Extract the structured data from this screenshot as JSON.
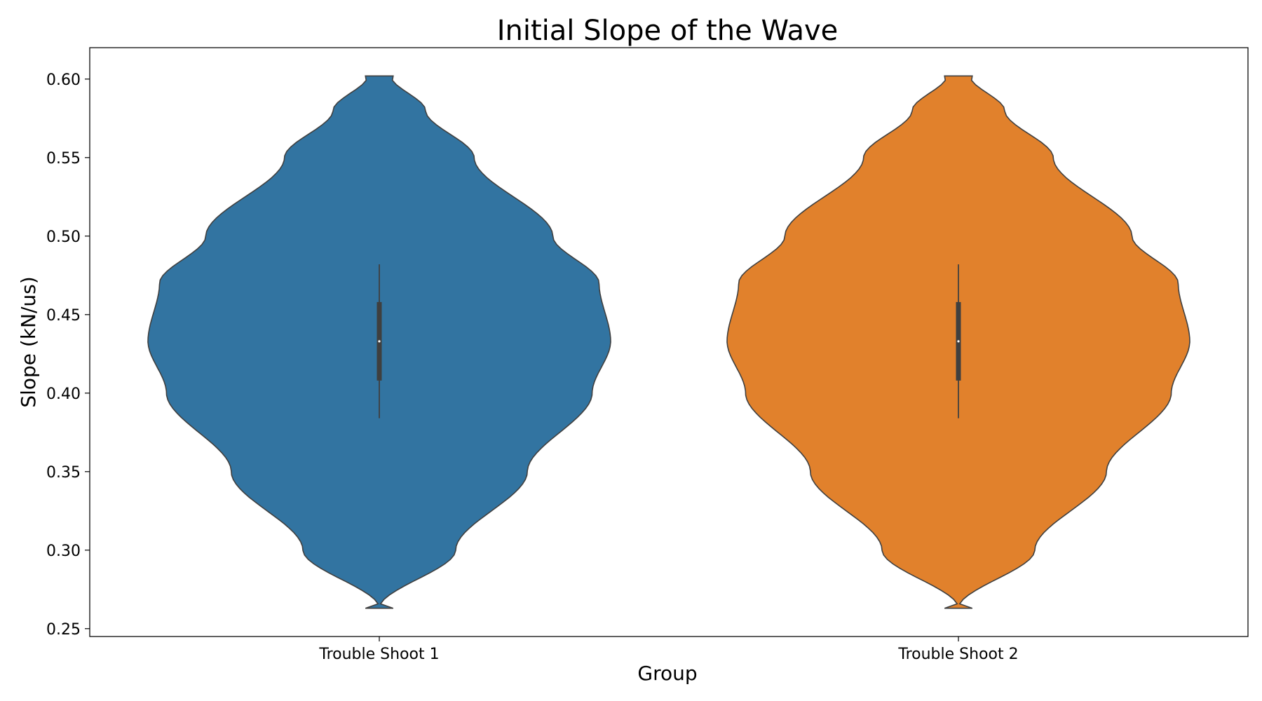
{
  "chart_data": {
    "type": "violin",
    "title": "Initial Slope of the Wave",
    "xlabel": "Group",
    "ylabel": "Slope (kN/us)",
    "ylim": [
      0.245,
      0.62
    ],
    "yticks": [
      "0.25",
      "0.30",
      "0.35",
      "0.40",
      "0.45",
      "0.50",
      "0.55",
      "0.60"
    ],
    "grid": false,
    "categories": [
      "Trouble Shoot 1",
      "Trouble Shoot 2"
    ],
    "series": [
      {
        "category": "Trouble Shoot 1",
        "color": "#3274a1",
        "min": 0.263,
        "max": 0.602,
        "median": 0.433,
        "q1": 0.408,
        "q3": 0.458,
        "whisker_low": 0.384,
        "whisker_high": 0.482,
        "density": [
          [
            0.263,
            0.0
          ],
          [
            0.3,
            0.33
          ],
          [
            0.35,
            0.64
          ],
          [
            0.4,
            0.92
          ],
          [
            0.433,
            1.0
          ],
          [
            0.47,
            0.95
          ],
          [
            0.5,
            0.75
          ],
          [
            0.55,
            0.41
          ],
          [
            0.58,
            0.2
          ],
          [
            0.602,
            0.05
          ]
        ]
      },
      {
        "category": "Trouble Shoot 2",
        "color": "#e1812c",
        "min": 0.263,
        "max": 0.602,
        "median": 0.433,
        "q1": 0.408,
        "q3": 0.458,
        "whisker_low": 0.384,
        "whisker_high": 0.482,
        "density": [
          [
            0.263,
            0.0
          ],
          [
            0.3,
            0.33
          ],
          [
            0.35,
            0.64
          ],
          [
            0.4,
            0.92
          ],
          [
            0.433,
            1.0
          ],
          [
            0.47,
            0.95
          ],
          [
            0.5,
            0.75
          ],
          [
            0.55,
            0.41
          ],
          [
            0.58,
            0.2
          ],
          [
            0.602,
            0.05
          ]
        ]
      }
    ]
  }
}
